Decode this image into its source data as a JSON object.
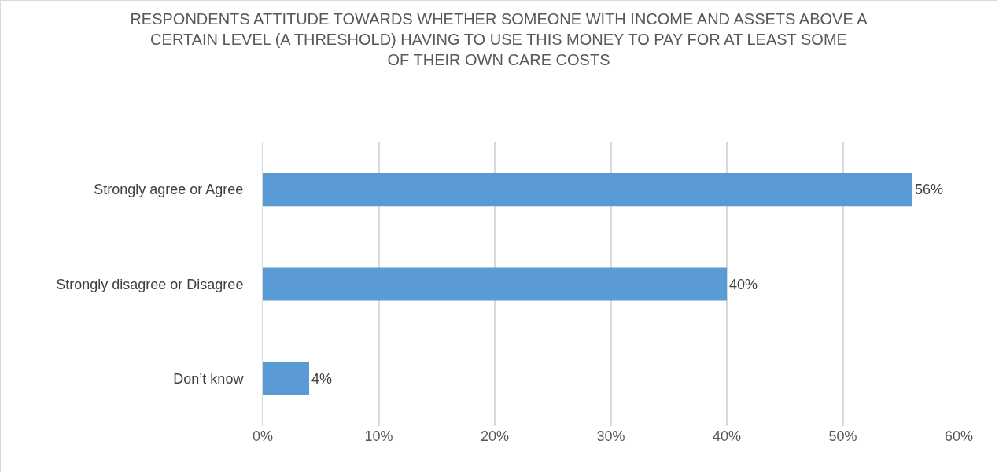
{
  "chart_data": {
    "type": "bar",
    "orientation": "horizontal",
    "title": "RESPONDENTS ATTITUDE TOWARDS WHETHER SOMEONE WITH INCOME AND ASSETS ABOVE A CERTAIN LEVEL (A THRESHOLD) HAVING TO USE THIS MONEY TO PAY FOR AT LEAST SOME OF THEIR OWN CARE COSTS",
    "categories": [
      "Strongly agree or Agree",
      "Strongly disagree or Disagree",
      "Don’t know"
    ],
    "values": [
      56,
      40,
      4
    ],
    "value_labels": [
      "56%",
      "40%",
      "4%"
    ],
    "color": "#5b9bd5",
    "xlim": [
      0,
      60
    ],
    "xticks": [
      {
        "value": 0,
        "label": "0%"
      },
      {
        "value": 10,
        "label": "10%"
      },
      {
        "value": 20,
        "label": "20%"
      },
      {
        "value": 30,
        "label": "30%"
      },
      {
        "value": 40,
        "label": "40%"
      },
      {
        "value": 50,
        "label": "50%"
      },
      {
        "value": 60,
        "label": "60%"
      }
    ],
    "grid": "x",
    "legend": false
  }
}
